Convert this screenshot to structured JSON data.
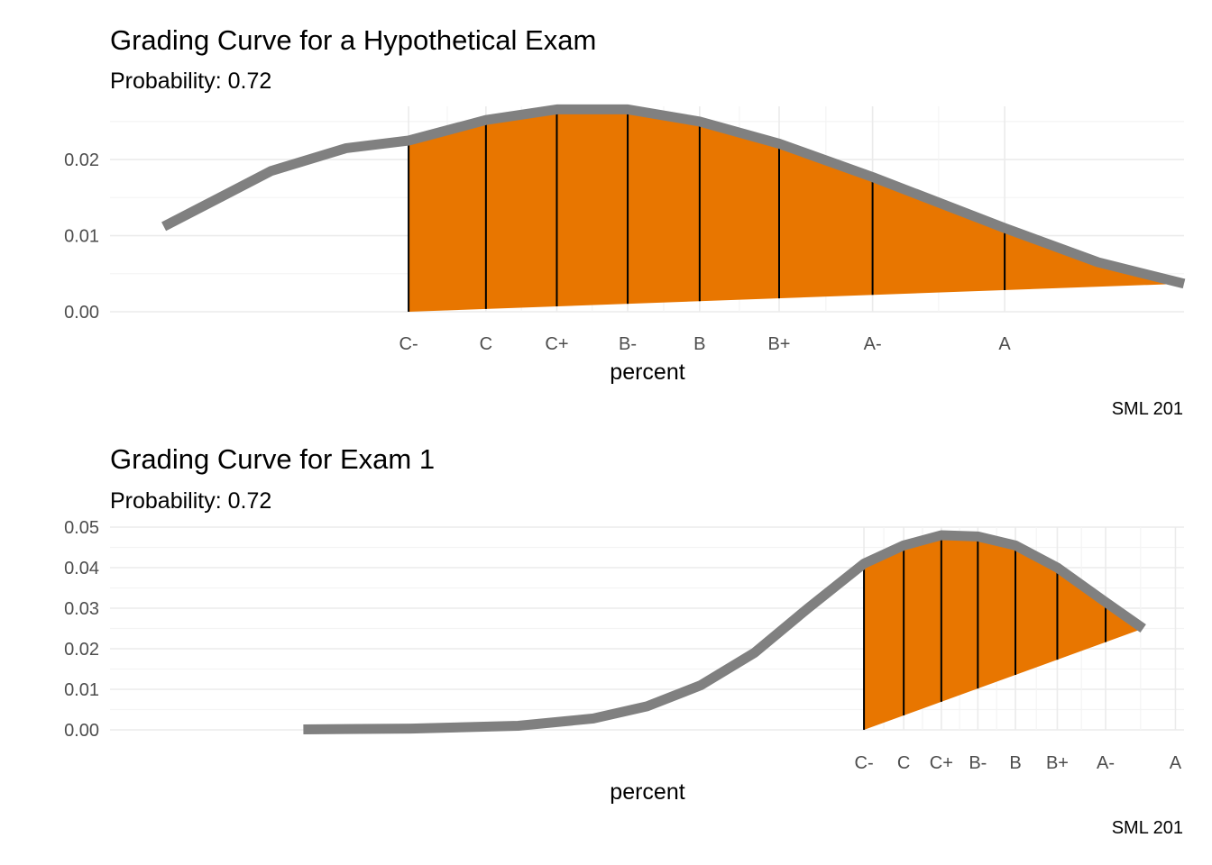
{
  "colors": {
    "fill": "#E87600",
    "curve": "#808080",
    "grid_major": "#EBEBEB",
    "grid_minor": "#F4F4F4",
    "vline": "#000000"
  },
  "chart_data": [
    {
      "type": "area",
      "title": "Grading Curve for a Hypothetical Exam",
      "subtitle": "Probability: 0.72",
      "xlabel": "percent",
      "ylabel": "",
      "caption": "SML 201",
      "ylim": [
        0,
        0.027
      ],
      "yticks": [
        0.0,
        0.01,
        0.02
      ],
      "ytick_labels": [
        "0.00",
        "0.01",
        "0.02"
      ],
      "xlim": [
        0,
        100
      ],
      "xtick_labels": [
        "C-",
        "C",
        "C+",
        "B-",
        "B",
        "B+",
        "A-",
        "A"
      ],
      "xtick_positions": [
        27.8,
        35.0,
        41.6,
        48.2,
        54.9,
        62.3,
        71.0,
        83.3
      ],
      "curve_x": [
        5,
        15,
        22,
        27.8,
        35,
        41.6,
        48.2,
        54.9,
        62.3,
        71.0,
        83.3,
        92,
        100
      ],
      "curve_y": [
        0.0112,
        0.0185,
        0.0215,
        0.0225,
        0.0252,
        0.0266,
        0.0266,
        0.025,
        0.0221,
        0.0177,
        0.011,
        0.0065,
        0.0037
      ],
      "shade_from": 27.8,
      "shade_to": 100,
      "shade_base_start": 0.0,
      "shade_base_end": 0.0037,
      "grade_cutoffs_y": [
        0.0225,
        0.0252,
        0.0266,
        0.0266,
        0.025,
        0.0221,
        0.0177,
        0.011
      ]
    },
    {
      "type": "area",
      "title": "Grading Curve for Exam 1",
      "subtitle": "Probability: 0.72",
      "xlabel": "percent",
      "ylabel": "",
      "caption": "SML 201",
      "ylim": [
        0,
        0.05
      ],
      "yticks": [
        0.0,
        0.01,
        0.02,
        0.03,
        0.04,
        0.05
      ],
      "ytick_labels": [
        "0.00",
        "0.01",
        "0.02",
        "0.03",
        "0.04",
        "0.05"
      ],
      "xlim": [
        0,
        100
      ],
      "xtick_labels": [
        "C-",
        "C",
        "C+",
        "B-",
        "B",
        "B+",
        "A-",
        "A"
      ],
      "xtick_positions": [
        70.2,
        73.9,
        77.4,
        80.8,
        84.3,
        88.2,
        92.7,
        99.2
      ],
      "curve_x": [
        18,
        28,
        38,
        45,
        50,
        55,
        60,
        65,
        70.2,
        73.9,
        77.4,
        80.8,
        84.3,
        88.2,
        92.7,
        96.2
      ],
      "curve_y": [
        0.0001,
        0.0003,
        0.001,
        0.0028,
        0.0058,
        0.011,
        0.019,
        0.03,
        0.041,
        0.0455,
        0.048,
        0.0477,
        0.0455,
        0.04,
        0.0315,
        0.025
      ],
      "shade_from": 70.2,
      "shade_to": 96.2,
      "shade_base_start": 0.0,
      "shade_base_end": 0.025,
      "grade_cutoffs_y": [
        0.041,
        0.0455,
        0.048,
        0.0477,
        0.0455,
        0.04,
        0.0315
      ]
    }
  ]
}
